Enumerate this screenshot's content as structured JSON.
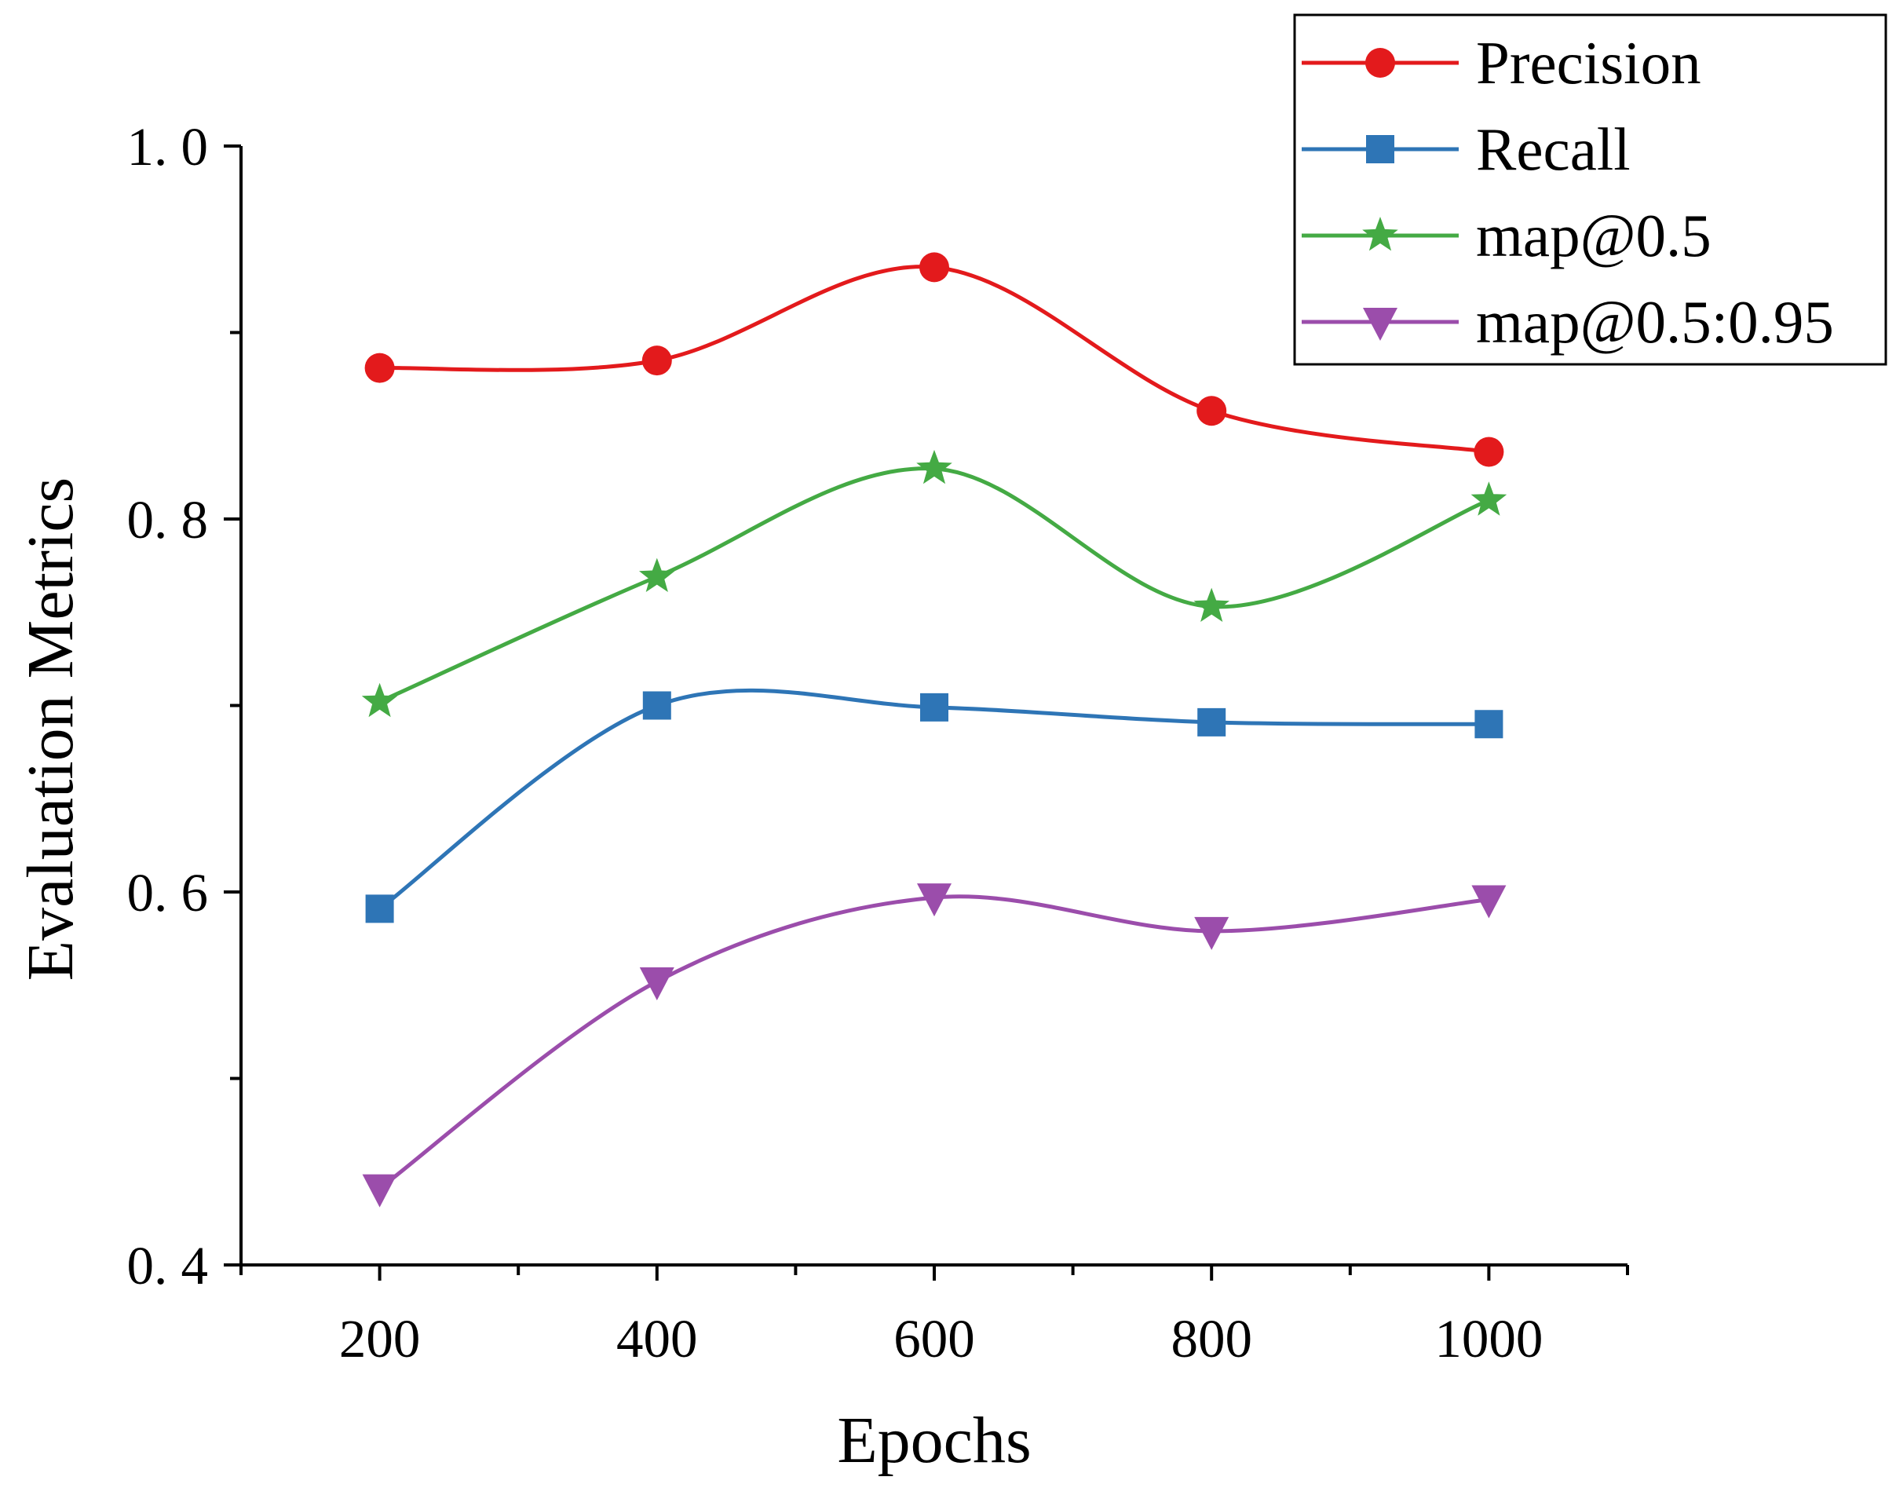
{
  "chart_data": {
    "type": "line",
    "xlabel": "Epochs",
    "ylabel": "Evaluation Metrics",
    "x": [
      200,
      400,
      600,
      800,
      1000
    ],
    "xlim": [
      100,
      1100
    ],
    "ylim": [
      0.4,
      1.0
    ],
    "x_ticks": [
      200,
      400,
      600,
      800,
      1000
    ],
    "x_tick_labels": [
      "200",
      "400",
      "600",
      "800",
      "1000"
    ],
    "y_ticks": [
      0.4,
      0.6,
      0.8,
      1.0
    ],
    "y_tick_labels": [
      "0. 4",
      "0. 6",
      "0. 8",
      "1. 0"
    ],
    "legend_position": "top-right",
    "grid": false,
    "series": [
      {
        "name": "Precision",
        "color": "#e31a1c",
        "marker": "circle",
        "values": [
          0.881,
          0.885,
          0.935,
          0.858,
          0.836
        ]
      },
      {
        "name": "Recall",
        "color": "#2e75b6",
        "marker": "square",
        "values": [
          0.591,
          0.7,
          0.699,
          0.691,
          0.69
        ]
      },
      {
        "name": "map@0.5",
        "color": "#44aa44",
        "marker": "star",
        "values": [
          0.702,
          0.769,
          0.827,
          0.753,
          0.81
        ]
      },
      {
        "name": "map@0.5:0.95",
        "color": "#9b4dab",
        "marker": "triangle-down",
        "values": [
          0.441,
          0.552,
          0.597,
          0.579,
          0.596
        ]
      }
    ]
  }
}
